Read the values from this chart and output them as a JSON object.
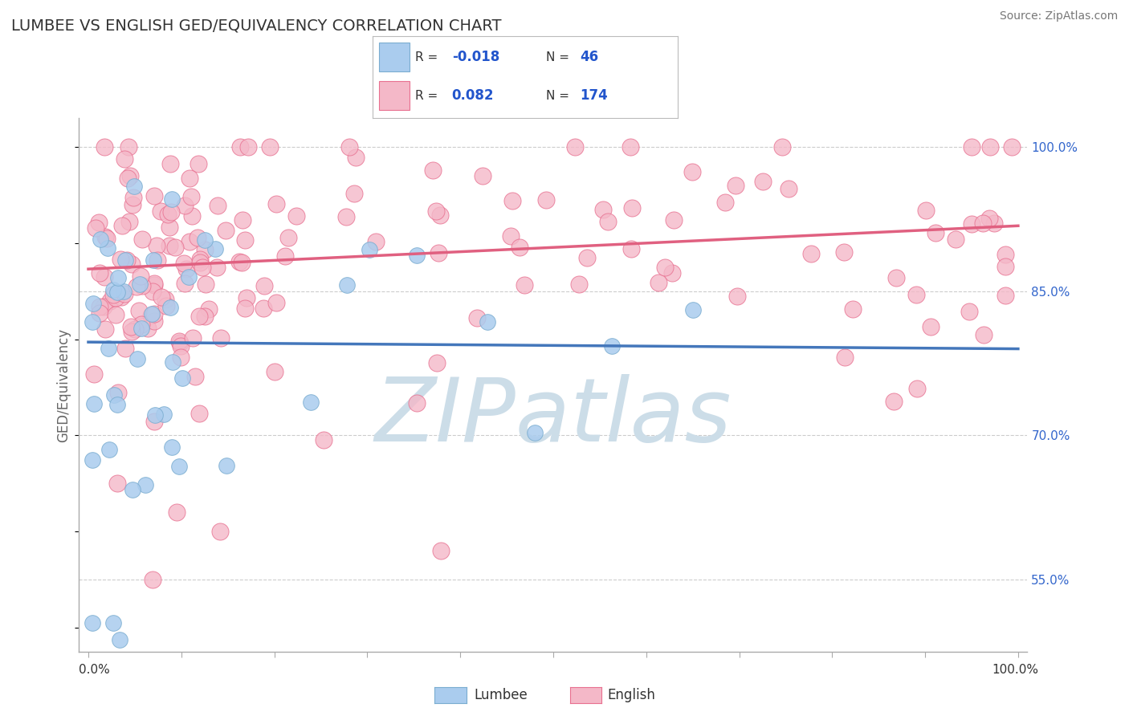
{
  "title": "LUMBEE VS ENGLISH GED/EQUIVALENCY CORRELATION CHART",
  "source": "Source: ZipAtlas.com",
  "ylabel": "GED/Equivalency",
  "ylim": [
    0.475,
    1.03
  ],
  "xlim": [
    -0.01,
    1.01
  ],
  "lumbee_color": "#aaccee",
  "english_color": "#f4b8c8",
  "lumbee_edge_color": "#7aadd0",
  "english_edge_color": "#e87090",
  "lumbee_line_color": "#4477bb",
  "english_line_color": "#e06080",
  "lumbee_R": -0.018,
  "lumbee_N": 46,
  "english_R": 0.082,
  "english_N": 174,
  "watermark": "ZIPatlas",
  "watermark_color": "#ccdde8",
  "background_color": "#ffffff",
  "title_color": "#333333",
  "grid_color": "#cccccc",
  "yticks_show": [
    0.55,
    0.7,
    0.85,
    1.0
  ]
}
